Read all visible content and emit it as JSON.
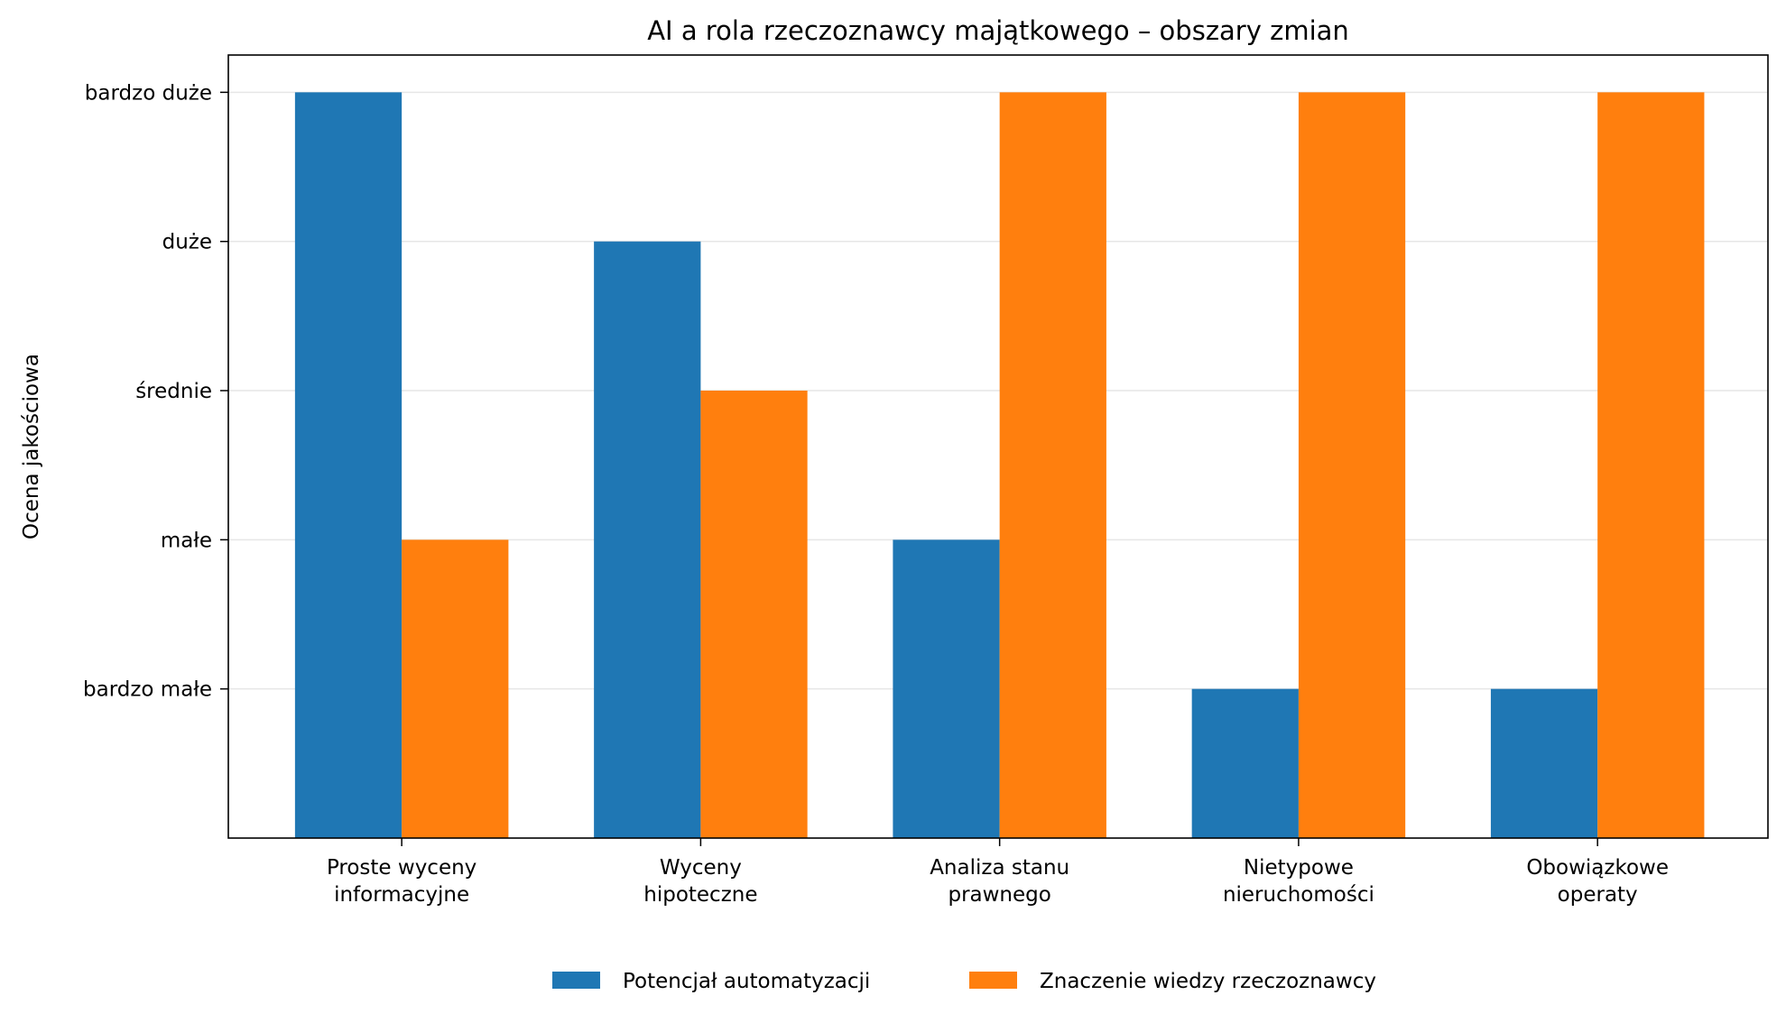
{
  "chart_data": {
    "type": "bar",
    "title": "AI a rola rzeczoznawcy majątkowego – obszary zmian",
    "xlabel": "",
    "ylabel": "Ocena jakościowa",
    "categories": [
      [
        "Proste wyceny",
        "informacyjne"
      ],
      [
        "Wyceny",
        "hipoteczne"
      ],
      [
        "Analiza stanu",
        "prawnego"
      ],
      [
        "Nietypowe",
        "nieruchomości"
      ],
      [
        "Obowiązkowe",
        "operaty"
      ]
    ],
    "y_tick_values": [
      1,
      2,
      3,
      4,
      5
    ],
    "y_tick_labels": [
      "bardzo małe",
      "małe",
      "średnie",
      "duże",
      "bardzo duże"
    ],
    "ylim": [
      0,
      5.25
    ],
    "grid": "horizontal",
    "legend": "bottom-center",
    "series": [
      {
        "name": "Potencjał automatyzacji",
        "color": "#1f77b4",
        "values": [
          5,
          4,
          2,
          1,
          1
        ]
      },
      {
        "name": "Znaczenie wiedzy rzeczoznawcy",
        "color": "#ff7f0e",
        "values": [
          2,
          3,
          5,
          5,
          5
        ]
      }
    ]
  }
}
